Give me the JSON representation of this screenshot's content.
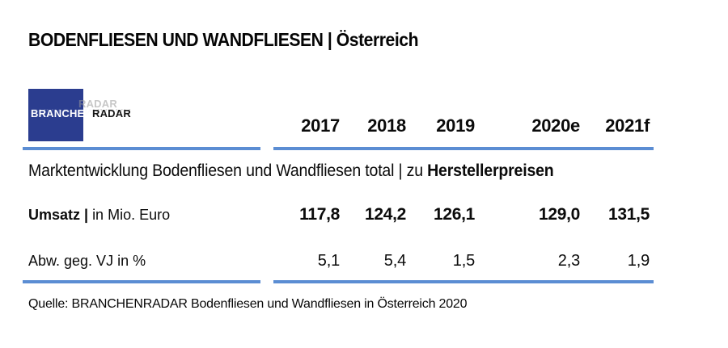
{
  "title": "BODENFLIESEN UND WANDFLIESEN | Österreich",
  "logo": {
    "part1": "BRANCHEN",
    "part2": "RADAR"
  },
  "table": {
    "years": [
      "2017",
      "2018",
      "2019",
      "2020e",
      "2021f"
    ],
    "section_header": {
      "regular": "Marktentwicklung Bodenfliesen und Wandfliesen total | zu ",
      "bold": "Herstellerpreisen"
    },
    "rows": [
      {
        "label_bold": "Umsatz | ",
        "label_regular": "in Mio. Euro",
        "values": [
          "117,8",
          "124,2",
          "126,1",
          "129,0",
          "131,5"
        ]
      },
      {
        "label_bold": "",
        "label_regular": "Abw. geg. VJ in %",
        "values": [
          "5,1",
          "5,4",
          "1,5",
          "2,3",
          "1,9"
        ]
      }
    ]
  },
  "source": "Quelle: BRANCHENRADAR Bodenfliesen und Wandfliesen in Österreich 2020",
  "colors": {
    "accent_blue": "#5B8DD3",
    "logo_navy": "#2B3D8F"
  }
}
